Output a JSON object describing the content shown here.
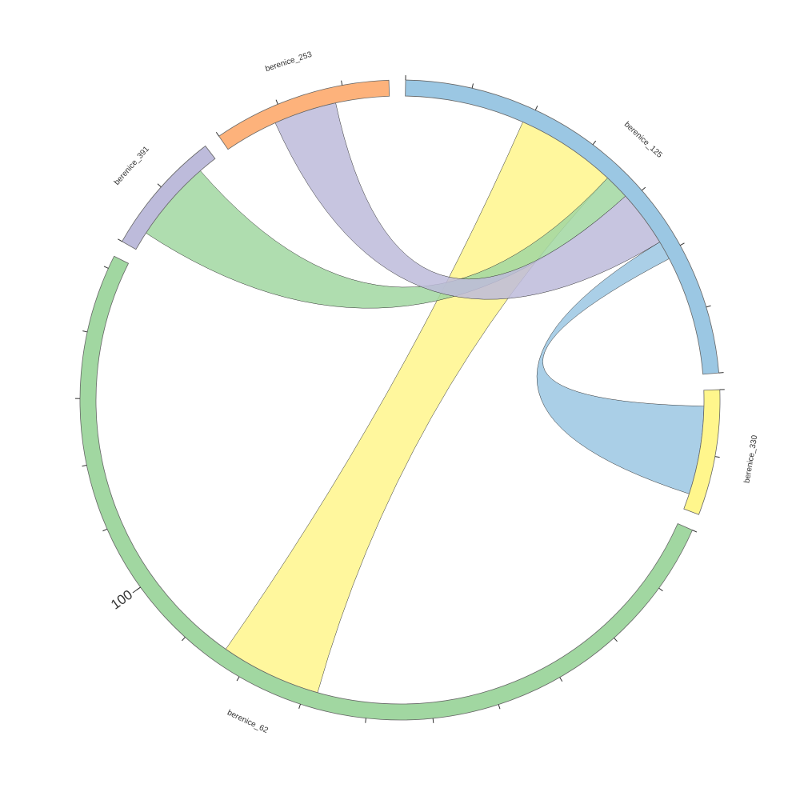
{
  "chart_data": {
    "type": "chord",
    "groups": [
      {
        "name": "berenice_125",
        "value": 70,
        "color": "#9bc7e3",
        "ticks": [
          0,
          10,
          20,
          30,
          40,
          50,
          60,
          70
        ],
        "tick_labels": []
      },
      {
        "name": "berenice_330",
        "value": 19,
        "color": "#fff68c",
        "ticks": [
          0,
          10
        ],
        "tick_labels": []
      },
      {
        "name": "berenice_62",
        "value": 152,
        "color": "#a1d7a1",
        "ticks": [
          0,
          10,
          20,
          30,
          40,
          50,
          60,
          70,
          80,
          90,
          100,
          110,
          120,
          130,
          140,
          150
        ],
        "tick_labels": [
          100
        ]
      },
      {
        "name": "berenice_391",
        "value": 19,
        "color": "#bdbbdb",
        "ticks": [
          0,
          10
        ],
        "tick_labels": []
      },
      {
        "name": "berenice_253",
        "value": 27,
        "color": "#fdb27b",
        "ticks": [
          0,
          10,
          20
        ],
        "tick_labels": []
      }
    ],
    "ribbons": [
      {
        "source": 0,
        "target": 2,
        "source_value": 16,
        "target_value": 16,
        "color": "#fff68c"
      },
      {
        "source": 3,
        "target": 0,
        "source_value": 13,
        "target_value": 4,
        "color": "#a1d7a1"
      },
      {
        "source": 4,
        "target": 0,
        "source_value": 10,
        "target_value": 9,
        "color": "#bdbbdb"
      },
      {
        "source": 0,
        "target": 1,
        "source_value": 3,
        "target_value": 14,
        "color": "#9bc7e3"
      }
    ]
  }
}
